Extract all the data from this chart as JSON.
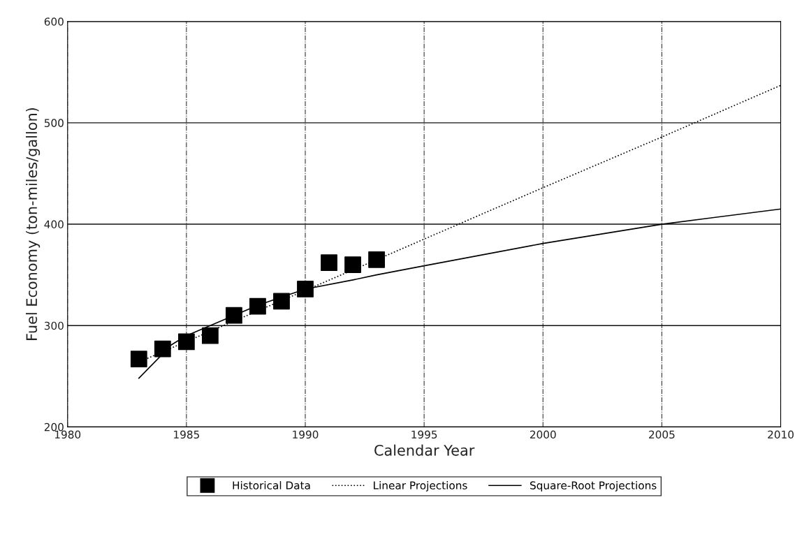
{
  "chart_data": {
    "type": "scatter",
    "xlabel": "Calendar Year",
    "ylabel": "Fuel Economy (ton-miles/gallon)",
    "xlim": [
      1980,
      2010
    ],
    "xticks": [
      1980,
      1985,
      1990,
      1995,
      2000,
      2005,
      2010
    ],
    "ylim": [
      200,
      600
    ],
    "yticks": [
      200,
      300,
      400,
      500,
      600
    ],
    "grid": true,
    "legend": "bottom",
    "series": [
      {
        "name": "Historical Data",
        "marker": "square",
        "color": "#000000",
        "x": [
          1983,
          1984,
          1985,
          1986,
          1987,
          1988,
          1989,
          1990,
          1991,
          1992,
          1993
        ],
        "values": [
          267,
          277,
          284,
          290,
          310,
          319,
          324,
          336,
          362,
          360,
          365
        ]
      },
      {
        "name": "Linear Projections",
        "type": "line",
        "line_style": "dotted",
        "color": "#000000",
        "x": [
          1983,
          1993,
          2000,
          2005,
          2010
        ],
        "values": [
          264,
          365,
          436,
          486,
          537
        ]
      },
      {
        "name": "Square-Root Projections",
        "type": "line",
        "line_style": "solid",
        "color": "#000000",
        "x": [
          1983,
          1984,
          1984.3,
          1985,
          1986,
          1987,
          1988,
          1989,
          1990,
          1992,
          1993,
          1995,
          2000,
          2005,
          2010
        ],
        "values": [
          248,
          272,
          280,
          290,
          300,
          310,
          320,
          328,
          336,
          345,
          350,
          359,
          381,
          400,
          415
        ]
      }
    ]
  }
}
